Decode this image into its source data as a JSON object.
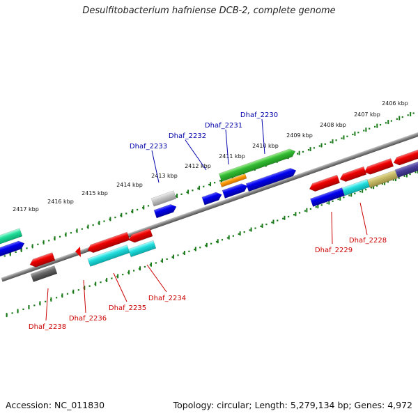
{
  "title": "Desulfitobacterium hafniense DCB-2, complete genome",
  "footer": {
    "accession": "Accession: NC_011830",
    "topology": "Topology: circular; Length: 5,279,134 bp; Genes: 4,972"
  },
  "colors": {
    "label_forward": "#0000aa",
    "label_reverse": "#cc0000",
    "backbone": "#808080",
    "tick": "#1a7a1a"
  },
  "scale_labels": [
    "2406 kbp",
    "2407 kbp",
    "2408 kbp",
    "2409 kbp",
    "2410 kbp",
    "2411 kbp",
    "2412 kbp",
    "2413 kbp",
    "2414 kbp",
    "2415 kbp",
    "2416 kbp",
    "2417 kbp"
  ],
  "gene_labels": {
    "forward": [
      "Dhaf_2230",
      "Dhaf_2231",
      "Dhaf_2232",
      "Dhaf_2233"
    ],
    "reverse": [
      "Dhaf_2228",
      "Dhaf_2229",
      "Dhaf_2234",
      "Dhaf_2235",
      "Dhaf_2236",
      "Dhaf_2238"
    ]
  }
}
